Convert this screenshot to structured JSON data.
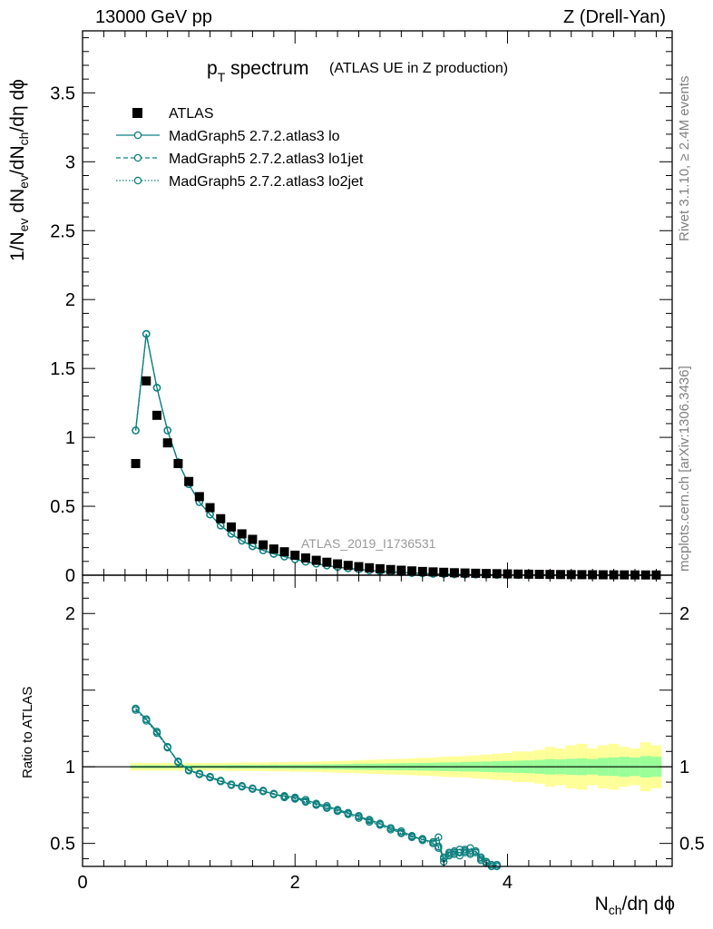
{
  "header": {
    "energy": "13000 GeV pp",
    "process": "Z (Drell-Yan)"
  },
  "side_labels": {
    "rivet": "Rivet 3.1.10, ≥ 2.4M events",
    "mcplots": "mcplots.cern.ch [arXiv:1306.3436]"
  },
  "chart_data": [
    {
      "type": "scatter",
      "panel": "main",
      "title": "p_T spectrum",
      "subtitle": "(ATLAS UE in Z production)",
      "watermark": "ATLAS_2019_I1736531",
      "xlabel": "N_ch/dη dϕ",
      "ylabel": "1/N_ev dN_ev/dN_ch/dη dϕ",
      "xlim": [
        0,
        5.55
      ],
      "ylim": [
        0,
        3.95
      ],
      "y_ticks": [
        "0",
        "0.5",
        "1",
        "1.5",
        "2",
        "2.5",
        "3",
        "3.5"
      ],
      "legend_position": "top-left",
      "series": [
        {
          "name": "ATLAS",
          "style": "square-marker",
          "color": "#000000",
          "x": [
            0.5,
            0.6,
            0.7,
            0.8,
            0.9,
            1.0,
            1.1,
            1.2,
            1.3,
            1.4,
            1.5,
            1.6,
            1.7,
            1.8,
            1.9,
            2.0,
            2.1,
            2.2,
            2.3,
            2.4,
            2.5,
            2.6,
            2.7,
            2.8,
            2.9,
            3.0,
            3.1,
            3.2,
            3.3,
            3.4,
            3.5,
            3.6,
            3.7,
            3.8,
            3.9,
            4.0,
            4.1,
            4.2,
            4.3,
            4.4,
            4.5,
            4.6,
            4.7,
            4.8,
            4.9,
            5.0,
            5.1,
            5.2,
            5.3,
            5.4
          ],
          "y": [
            0.81,
            1.41,
            1.16,
            0.96,
            0.81,
            0.68,
            0.57,
            0.49,
            0.41,
            0.35,
            0.3,
            0.26,
            0.22,
            0.19,
            0.17,
            0.145,
            0.125,
            0.108,
            0.094,
            0.082,
            0.071,
            0.062,
            0.054,
            0.047,
            0.041,
            0.036,
            0.031,
            0.027,
            0.024,
            0.021,
            0.018,
            0.016,
            0.014,
            0.012,
            0.011,
            0.0095,
            0.0083,
            0.0072,
            0.0063,
            0.0055,
            0.0048,
            0.0042,
            0.0037,
            0.0032,
            0.0028,
            0.0025,
            0.0022,
            0.0019,
            0.0017,
            0.0015
          ]
        },
        {
          "name": "MadGraph5 2.7.2.atlas3 lo",
          "style": "solid",
          "color": "#0f8080",
          "x": [
            0.5,
            0.6,
            0.7,
            0.8,
            0.9,
            1.0,
            1.1,
            1.2,
            1.3,
            1.4,
            1.5,
            1.6,
            1.7,
            1.8,
            1.9,
            2.0,
            2.1,
            2.2,
            2.3,
            2.4,
            2.5,
            2.6,
            2.7,
            2.8,
            2.9,
            3.0,
            3.1,
            3.2,
            3.3,
            3.4,
            3.5,
            3.6,
            3.7,
            3.8,
            3.9,
            4.0,
            4.1,
            4.2,
            4.3,
            4.4,
            4.5,
            4.6,
            4.7,
            4.8,
            4.9,
            5.0,
            5.1,
            5.2,
            5.3,
            5.4
          ],
          "y": [
            1.05,
            1.75,
            1.36,
            1.05,
            0.82,
            0.66,
            0.53,
            0.44,
            0.36,
            0.3,
            0.25,
            0.21,
            0.18,
            0.155,
            0.135,
            0.115,
            0.098,
            0.083,
            0.07,
            0.059,
            0.05,
            0.042,
            0.035,
            0.029,
            0.024,
            0.02,
            0.016,
            0.013,
            0.01,
            0.008,
            0.006,
            0.005,
            0.004,
            0.003,
            0.002,
            0.0015,
            0.001,
            0.0007,
            0.0005,
            0.0004,
            0.0003,
            0.0002,
            0.0002,
            0.0001,
            0.0001,
            0.0001,
            0.0001,
            0.0001,
            0.0001,
            0.0001
          ]
        },
        {
          "name": "MadGraph5 2.7.2.atlas3 lo1jet",
          "style": "dashed",
          "color": "#0f8080",
          "x": [
            0.5,
            0.6,
            0.7,
            0.8,
            0.9,
            1.0,
            1.1,
            1.2,
            1.3,
            1.4,
            1.5,
            1.6,
            1.7,
            1.8,
            1.9,
            2.0,
            2.1,
            2.2,
            2.3,
            2.4,
            2.5,
            2.6,
            2.7,
            2.8,
            2.9,
            3.0,
            3.1,
            3.2,
            3.3,
            3.4,
            3.5,
            3.6,
            3.7,
            3.8,
            3.9,
            4.0,
            4.1,
            4.2,
            4.3,
            4.4,
            4.5,
            4.6,
            4.7,
            4.8,
            4.9,
            5.0,
            5.1,
            5.2,
            5.3,
            5.4
          ],
          "y": [
            1.05,
            1.75,
            1.36,
            1.05,
            0.82,
            0.66,
            0.53,
            0.44,
            0.36,
            0.3,
            0.25,
            0.21,
            0.18,
            0.155,
            0.135,
            0.115,
            0.098,
            0.083,
            0.07,
            0.059,
            0.05,
            0.042,
            0.035,
            0.029,
            0.024,
            0.02,
            0.016,
            0.013,
            0.01,
            0.008,
            0.006,
            0.005,
            0.004,
            0.003,
            0.002,
            0.0015,
            0.001,
            0.0007,
            0.0005,
            0.0004,
            0.0003,
            0.0002,
            0.0002,
            0.0001,
            0.0001,
            0.0001,
            0.0001,
            0.0001,
            0.0001,
            0.0001
          ]
        },
        {
          "name": "MadGraph5 2.7.2.atlas3 lo2jet",
          "style": "dotted",
          "color": "#0f8080",
          "x": [
            0.5,
            0.6,
            0.7,
            0.8,
            0.9,
            1.0,
            1.1,
            1.2,
            1.3,
            1.4,
            1.5,
            1.6,
            1.7,
            1.8,
            1.9,
            2.0,
            2.1,
            2.2,
            2.3,
            2.4,
            2.5,
            2.6,
            2.7,
            2.8,
            2.9,
            3.0,
            3.1,
            3.2,
            3.3,
            3.4,
            3.5,
            3.6,
            3.7,
            3.8,
            3.9,
            4.0,
            4.1,
            4.2,
            4.3,
            4.4,
            4.5,
            4.6,
            4.7,
            4.8,
            4.9,
            5.0,
            5.1,
            5.2,
            5.3,
            5.4
          ],
          "y": [
            1.05,
            1.75,
            1.36,
            1.05,
            0.82,
            0.66,
            0.53,
            0.44,
            0.36,
            0.3,
            0.25,
            0.21,
            0.18,
            0.155,
            0.135,
            0.115,
            0.098,
            0.083,
            0.07,
            0.059,
            0.05,
            0.042,
            0.035,
            0.029,
            0.024,
            0.02,
            0.016,
            0.013,
            0.01,
            0.008,
            0.006,
            0.005,
            0.004,
            0.003,
            0.002,
            0.0015,
            0.001,
            0.0007,
            0.0005,
            0.0004,
            0.0003,
            0.0002,
            0.0002,
            0.0001,
            0.0001,
            0.0001,
            0.0001,
            0.0001,
            0.0001,
            0.0001
          ]
        }
      ]
    },
    {
      "type": "line",
      "panel": "ratio",
      "xlabel": "N_ch/dη dϕ",
      "ylabel": "Ratio to ATLAS",
      "xlim": [
        0,
        5.55
      ],
      "ylim": [
        0.35,
        2.25
      ],
      "x_ticks": [
        "0",
        "2",
        "4"
      ],
      "y_ticks_left": [
        "0.5",
        "1",
        "2"
      ],
      "y_ticks_right": [
        "0.5",
        "1",
        "2"
      ],
      "band_inner_color": "#99ff99",
      "band_outer_color": "#ffff99",
      "bands": {
        "x": [
          0.5,
          0.6,
          0.7,
          0.8,
          0.9,
          1.0,
          1.1,
          1.2,
          1.3,
          1.4,
          1.5,
          1.6,
          1.7,
          1.8,
          1.9,
          2.0,
          2.1,
          2.2,
          2.3,
          2.4,
          2.5,
          2.6,
          2.7,
          2.8,
          2.9,
          3.0,
          3.1,
          3.2,
          3.3,
          3.4,
          3.5,
          3.6,
          3.7,
          3.8,
          3.9,
          4.0,
          4.1,
          4.2,
          4.3,
          4.4,
          4.5,
          4.6,
          4.7,
          4.8,
          4.9,
          5.0,
          5.1,
          5.2,
          5.3,
          5.4
        ],
        "inner": [
          0.01,
          0.01,
          0.01,
          0.01,
          0.01,
          0.01,
          0.01,
          0.01,
          0.01,
          0.012,
          0.012,
          0.012,
          0.012,
          0.013,
          0.013,
          0.014,
          0.014,
          0.015,
          0.016,
          0.017,
          0.018,
          0.019,
          0.02,
          0.021,
          0.022,
          0.023,
          0.024,
          0.025,
          0.026,
          0.028,
          0.029,
          0.031,
          0.032,
          0.034,
          0.036,
          0.038,
          0.04,
          0.042,
          0.045,
          0.05,
          0.048,
          0.052,
          0.055,
          0.05,
          0.058,
          0.06,
          0.065,
          0.06,
          0.07,
          0.065
        ],
        "outer": [
          0.025,
          0.025,
          0.025,
          0.025,
          0.025,
          0.025,
          0.025,
          0.025,
          0.025,
          0.027,
          0.027,
          0.028,
          0.028,
          0.03,
          0.03,
          0.032,
          0.032,
          0.034,
          0.036,
          0.038,
          0.04,
          0.042,
          0.045,
          0.047,
          0.05,
          0.052,
          0.055,
          0.058,
          0.06,
          0.065,
          0.068,
          0.07,
          0.075,
          0.08,
          0.085,
          0.09,
          0.1,
          0.1,
          0.11,
          0.13,
          0.12,
          0.14,
          0.15,
          0.12,
          0.14,
          0.15,
          0.13,
          0.12,
          0.16,
          0.14
        ]
      },
      "series": [
        {
          "name": "MadGraph5 2.7.2.atlas3 lo",
          "style": "solid",
          "color": "#0f8080",
          "x": [
            0.5,
            0.6,
            0.7,
            0.8,
            0.9,
            1.0,
            1.1,
            1.2,
            1.3,
            1.4,
            1.5,
            1.6,
            1.7,
            1.8,
            1.9,
            2.0,
            2.1,
            2.2,
            2.3,
            2.4,
            2.5,
            2.6,
            2.7,
            2.8,
            2.9,
            3.0,
            3.1,
            3.2,
            3.3,
            3.35,
            3.4,
            3.45,
            3.5,
            3.55,
            3.6,
            3.65,
            3.7,
            3.75,
            3.8,
            3.85,
            3.9
          ],
          "y": [
            1.38,
            1.31,
            1.23,
            1.13,
            1.03,
            0.98,
            0.955,
            0.93,
            0.905,
            0.885,
            0.875,
            0.855,
            0.845,
            0.82,
            0.81,
            0.8,
            0.785,
            0.76,
            0.745,
            0.72,
            0.7,
            0.675,
            0.655,
            0.63,
            0.6,
            0.58,
            0.55,
            0.525,
            0.51,
            0.54,
            0.38,
            0.42,
            0.45,
            0.42,
            0.46,
            0.43,
            0.45,
            0.4,
            0.37,
            0.36,
            0.35
          ]
        },
        {
          "name": "MadGraph5 2.7.2.atlas3 lo1jet",
          "style": "dashed",
          "color": "#0f8080",
          "x": [
            0.5,
            0.6,
            0.7,
            0.8,
            0.9,
            1.0,
            1.1,
            1.2,
            1.3,
            1.4,
            1.5,
            1.6,
            1.7,
            1.8,
            1.9,
            2.0,
            2.1,
            2.2,
            2.3,
            2.4,
            2.5,
            2.6,
            2.7,
            2.8,
            2.9,
            3.0,
            3.1,
            3.2,
            3.3,
            3.35,
            3.4,
            3.45,
            3.5,
            3.55,
            3.6,
            3.65,
            3.7,
            3.75,
            3.8,
            3.85,
            3.9
          ],
          "y": [
            1.38,
            1.31,
            1.22,
            1.13,
            1.035,
            0.975,
            0.955,
            0.935,
            0.91,
            0.885,
            0.87,
            0.86,
            0.84,
            0.825,
            0.805,
            0.795,
            0.775,
            0.755,
            0.73,
            0.71,
            0.695,
            0.68,
            0.64,
            0.62,
            0.59,
            0.57,
            0.54,
            0.53,
            0.5,
            0.48,
            0.4,
            0.44,
            0.43,
            0.46,
            0.44,
            0.47,
            0.45,
            0.41,
            0.38,
            0.36,
            0.36
          ]
        },
        {
          "name": "MadGraph5 2.7.2.atlas3 lo2jet",
          "style": "dotted",
          "color": "#0f8080",
          "x": [
            0.5,
            0.6,
            0.7,
            0.8,
            0.9,
            1.0,
            1.1,
            1.2,
            1.3,
            1.4,
            1.5,
            1.6,
            1.7,
            1.8,
            1.9,
            2.0,
            2.1,
            2.2,
            2.3,
            2.4,
            2.5,
            2.6,
            2.7,
            2.8,
            2.9,
            3.0,
            3.1,
            3.2,
            3.3,
            3.35,
            3.4,
            3.45,
            3.5,
            3.55,
            3.6,
            3.65,
            3.7,
            3.75,
            3.8,
            3.85,
            3.9
          ],
          "y": [
            1.37,
            1.3,
            1.22,
            1.125,
            1.03,
            0.975,
            0.95,
            0.93,
            0.905,
            0.88,
            0.87,
            0.855,
            0.84,
            0.82,
            0.8,
            0.79,
            0.77,
            0.75,
            0.735,
            0.715,
            0.69,
            0.665,
            0.65,
            0.625,
            0.6,
            0.565,
            0.545,
            0.52,
            0.5,
            0.47,
            0.41,
            0.43,
            0.44,
            0.44,
            0.45,
            0.44,
            0.44,
            0.39,
            0.38,
            0.35,
            0.36
          ]
        }
      ]
    }
  ]
}
